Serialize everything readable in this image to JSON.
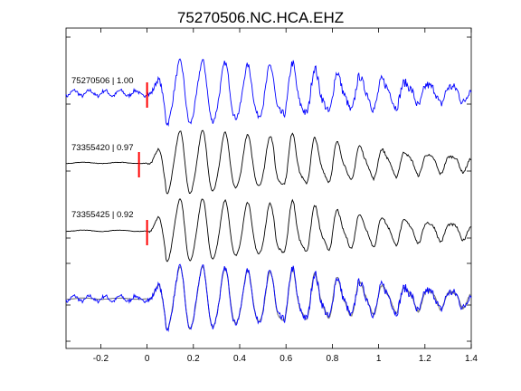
{
  "chart_data": {
    "type": "line",
    "title": "75270506.NC.HCA.EHZ",
    "xlabel": "",
    "ylabel": "",
    "xlim": [
      -0.35,
      1.4
    ],
    "x_ticks": [
      -0.2,
      0,
      0.2,
      0.4,
      0.6,
      0.8,
      1,
      1.2,
      1.4
    ],
    "x_tick_labels": [
      "-0.2",
      "0",
      "0.2",
      "0.4",
      "0.6",
      "0.8",
      "1",
      "1.2",
      "1.4"
    ],
    "grid": false,
    "colors": {
      "master": "#0000ff",
      "correlated": "#000000",
      "overlay_gray": "#808080",
      "pick": "#ff0000"
    },
    "traces": [
      {
        "label": "75270506 | 1.00",
        "event": "75270506",
        "cc": 1.0,
        "pick_time": 0.0,
        "color": "#0000ff"
      },
      {
        "label": "73355420 | 0.97",
        "event": "73355420",
        "cc": 0.97,
        "pick_time": -0.035,
        "color": "#000000"
      },
      {
        "label": "73355425 | 0.92",
        "event": "73355425",
        "cc": 0.92,
        "pick_time": 0.0,
        "color": "#000000"
      }
    ],
    "overlay": {
      "description": "stack of all traces",
      "series": [
        "75270506",
        "73355420",
        "73355425"
      ]
    }
  }
}
